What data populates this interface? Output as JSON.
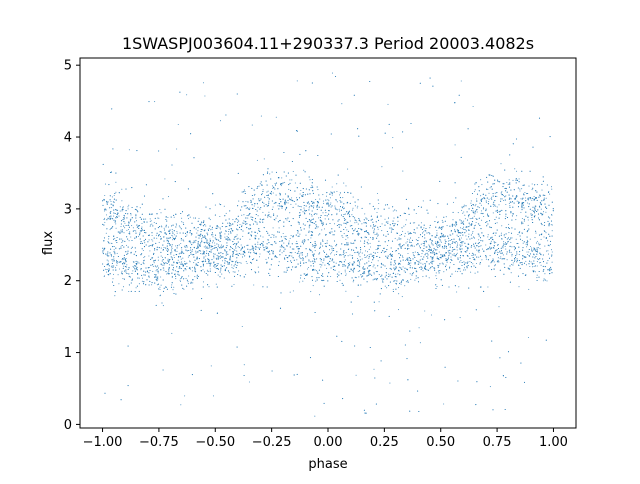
{
  "chart_data": {
    "type": "scatter",
    "title": "1SWASPJ003604.11+290337.3 Period 20003.4082s",
    "xlabel": "phase",
    "ylabel": "flux",
    "xlim": [
      -1.1,
      1.1
    ],
    "ylim": [
      -0.05,
      5.1
    ],
    "x_ticks": [
      -1.0,
      -0.75,
      -0.5,
      -0.25,
      0.0,
      0.25,
      0.5,
      0.75,
      1.0
    ],
    "x_tick_labels": [
      "−1.00",
      "−0.75",
      "−0.50",
      "−0.25",
      "0.00",
      "0.25",
      "0.50",
      "0.75",
      "1.00"
    ],
    "y_ticks": [
      0,
      1,
      2,
      3,
      4,
      5
    ],
    "y_tick_labels": [
      "0",
      "1",
      "2",
      "3",
      "4",
      "5"
    ],
    "grid": false,
    "legend": "none",
    "series": [
      {
        "point_color": "#1f77b4",
        "x_range": [
          -1.0,
          1.0
        ],
        "upper_branch": [
          {
            "x": -1.0,
            "y": 2.95
          },
          {
            "x": -0.75,
            "y": 2.65
          },
          {
            "x": -0.5,
            "y": 2.55
          },
          {
            "x": -0.25,
            "y": 3.15
          },
          {
            "x": 0.0,
            "y": 2.95
          },
          {
            "x": 0.25,
            "y": 2.65
          },
          {
            "x": 0.5,
            "y": 2.55
          },
          {
            "x": 0.75,
            "y": 3.15
          },
          {
            "x": 1.0,
            "y": 2.95
          }
        ],
        "lower_branch": [
          {
            "x": -1.0,
            "y": 2.3
          },
          {
            "x": -0.75,
            "y": 2.15
          },
          {
            "x": -0.5,
            "y": 2.3
          },
          {
            "x": -0.25,
            "y": 2.45
          },
          {
            "x": 0.0,
            "y": 2.3
          },
          {
            "x": 0.25,
            "y": 2.15
          },
          {
            "x": 0.5,
            "y": 2.3
          },
          {
            "x": 0.75,
            "y": 2.45
          },
          {
            "x": 1.0,
            "y": 2.3
          }
        ],
        "outlier_range": [
          0.1,
          4.9
        ]
      }
    ]
  }
}
